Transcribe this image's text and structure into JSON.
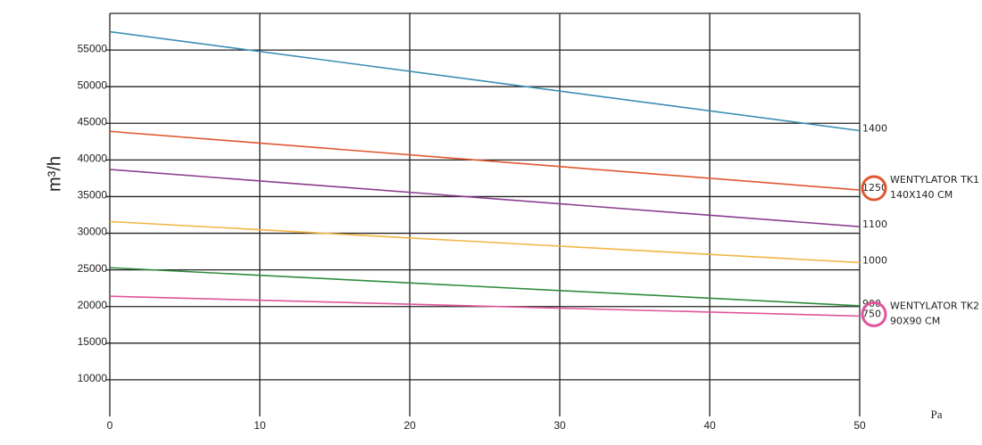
{
  "chart_data": {
    "type": "line",
    "x": [
      0,
      50
    ],
    "xlim": [
      0,
      50
    ],
    "xticks": [
      0,
      10,
      20,
      30,
      40,
      50
    ],
    "ylim": [
      5000,
      60000
    ],
    "yticks": [
      10000,
      15000,
      20000,
      25000,
      30000,
      35000,
      40000,
      45000,
      50000,
      55000
    ],
    "ylabel": "m³/h",
    "xlabel": "Pa",
    "grid": true,
    "series": [
      {
        "name": "1400",
        "color": "#3a8db5",
        "values": [
          57500,
          44000
        ]
      },
      {
        "name": "1250",
        "color": "#e0572f",
        "values": [
          43900,
          35900
        ]
      },
      {
        "name": "1100",
        "color": "#8b3d8e",
        "values": [
          38700,
          30900
        ]
      },
      {
        "name": "1000",
        "color": "#f2b544",
        "values": [
          31600,
          26000
        ]
      },
      {
        "name": "900",
        "color": "#2e8b3a",
        "values": [
          25300,
          20100
        ]
      },
      {
        "name": "750",
        "color": "#e0559a",
        "values": [
          21400,
          18700
        ]
      }
    ],
    "annotations": [
      {
        "lines": [
          "WENTYLATOR TK1",
          "140X140 CM"
        ],
        "series": 1
      },
      {
        "lines": [
          "WENTYLATOR TK2",
          "90X90 CM"
        ],
        "series": 5
      }
    ]
  }
}
